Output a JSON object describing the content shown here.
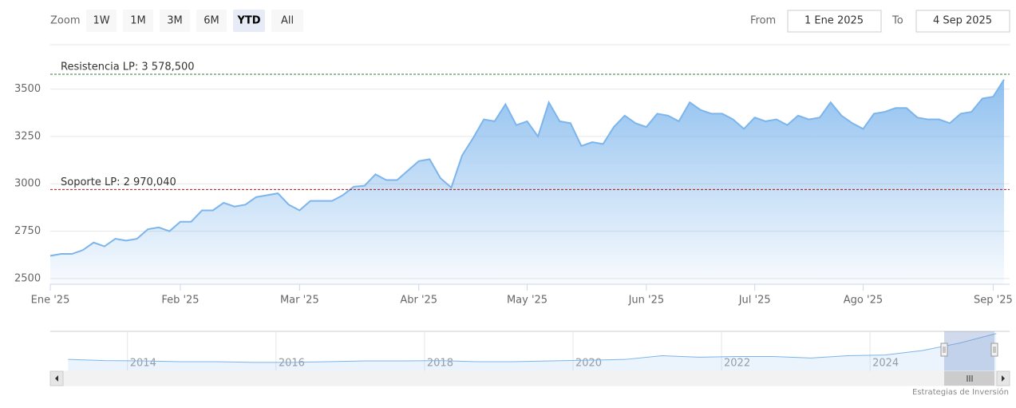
{
  "controls": {
    "zoom_label": "Zoom",
    "buttons": [
      "1W",
      "1M",
      "3M",
      "6M",
      "YTD",
      "All"
    ],
    "selected": "YTD",
    "from_label": "From",
    "from_value": "1 Ene 2025",
    "to_label": "To",
    "to_value": "4 Sep 2025"
  },
  "credits": "Estrategias de Inversión",
  "chart_data": [
    {
      "type": "area",
      "color": "#7cb5ec",
      "categories": [
        "Ene '25",
        null,
        null,
        null,
        null,
        null,
        null,
        null,
        null,
        null,
        null,
        null,
        "Feb '25",
        null,
        null,
        null,
        null,
        null,
        null,
        null,
        null,
        null,
        null,
        "Mar '25",
        null,
        null,
        null,
        null,
        null,
        null,
        null,
        null,
        null,
        null,
        "Abr '25",
        null,
        null,
        null,
        null,
        null,
        null,
        null,
        null,
        null,
        "May '25",
        null,
        null,
        null,
        null,
        null,
        null,
        null,
        null,
        null,
        null,
        "Jun '25",
        null,
        null,
        null,
        null,
        null,
        null,
        null,
        null,
        null,
        "Jul '25",
        null,
        null,
        null,
        null,
        null,
        null,
        null,
        null,
        null,
        "Ago '25",
        null,
        null,
        null,
        null,
        null,
        null,
        null,
        null,
        null,
        null,
        null,
        "Sep '25",
        null
      ],
      "values": [
        2620,
        2630,
        2630,
        2650,
        2690,
        2670,
        2710,
        2700,
        2710,
        2760,
        2770,
        2750,
        2800,
        2800,
        2860,
        2860,
        2900,
        2880,
        2890,
        2930,
        2940,
        2950,
        2890,
        2860,
        2910,
        2910,
        2910,
        2940,
        2985,
        2990,
        3050,
        3020,
        3020,
        3070,
        3120,
        3130,
        3030,
        2980,
        3150,
        3240,
        3340,
        3330,
        3420,
        3310,
        3330,
        3250,
        3430,
        3330,
        3320,
        3200,
        3220,
        3210,
        3300,
        3360,
        3320,
        3300,
        3370,
        3360,
        3330,
        3430,
        3390,
        3370,
        3370,
        3340,
        3290,
        3350,
        3330,
        3340,
        3310,
        3360,
        3340,
        3350,
        3430,
        3360,
        3320,
        3290,
        3370,
        3380,
        3400,
        3400,
        3350,
        3340,
        3340,
        3320,
        3370,
        3380,
        3450,
        3460,
        3550
      ],
      "ylim": [
        2470,
        3730
      ],
      "yticks": [
        2500,
        2750,
        3000,
        3250,
        3500
      ],
      "grid": true,
      "plot_lines": [
        {
          "label": "Resistencia LP: 3 578,500",
          "value": 3578.5,
          "color": "#2e7d32"
        },
        {
          "label": "Soporte LP: 2 970,040",
          "value": 2970.04,
          "color": "#a31515"
        }
      ]
    },
    {
      "type": "navigator",
      "color": "#7cb5ec",
      "x": [
        2013.2,
        2013.7,
        2014.2,
        2014.7,
        2015.2,
        2015.7,
        2016.2,
        2016.7,
        2017.2,
        2017.7,
        2018.2,
        2018.7,
        2019.2,
        2019.7,
        2020.2,
        2020.7,
        2021.2,
        2021.7,
        2022.2,
        2022.7,
        2023.2,
        2023.7,
        2024.2,
        2024.7,
        2025.2,
        2025.7
      ],
      "values": [
        1800,
        1720,
        1700,
        1650,
        1650,
        1600,
        1600,
        1650,
        1700,
        1700,
        1720,
        1650,
        1650,
        1700,
        1750,
        1800,
        2050,
        1950,
        2000,
        2000,
        1900,
        2050,
        2100,
        2400,
        2900,
        3550
      ],
      "xlim": [
        2012.96,
        2025.88
      ],
      "xticks": [
        2014,
        2016,
        2018,
        2020,
        2022,
        2024
      ],
      "ylim": [
        1000,
        3700
      ]
    }
  ]
}
